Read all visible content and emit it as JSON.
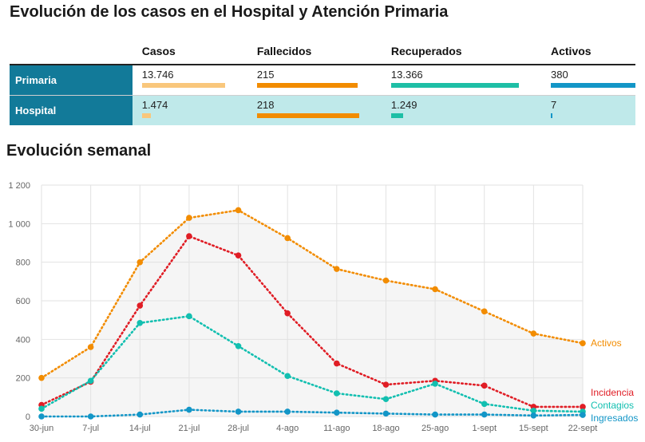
{
  "header": {
    "title": "Evolución de los casos en el Hospital y Atención Primaria"
  },
  "summary_table": {
    "columns": [
      "",
      "Casos",
      "Fallecidos",
      "Recuperados",
      "Activos"
    ],
    "column_colors": [
      "#f9c77c",
      "#f28c00",
      "#1ebfa6",
      "#1396c7"
    ],
    "column_max": [
      13746,
      218,
      13366,
      380
    ],
    "rows": [
      {
        "label": "Primaria",
        "values": [
          "13.746",
          "215",
          "13.366",
          "380"
        ],
        "numbers": [
          13746,
          215,
          13366,
          380
        ]
      },
      {
        "label": "Hospital",
        "values": [
          "1.474",
          "218",
          "1.249",
          "7"
        ],
        "numbers": [
          1474,
          218,
          1249,
          7
        ]
      }
    ]
  },
  "section": {
    "title": "Evolución semanal"
  },
  "chart_data": {
    "type": "line",
    "categories": [
      "30-jun",
      "7-jul",
      "14-jul",
      "21-jul",
      "28-jul",
      "4-ago",
      "11-ago",
      "18-ago",
      "25-ago",
      "1-sept",
      "15-sept",
      "22-sept"
    ],
    "x_positions": [
      0,
      7,
      14,
      21,
      28,
      35,
      42,
      49,
      56,
      63,
      70,
      77
    ],
    "ylim": [
      0,
      1200
    ],
    "yticks": [
      0,
      200,
      400,
      600,
      800,
      1000,
      1200
    ],
    "ytick_labels": [
      "0",
      "200",
      "400",
      "600",
      "800",
      "1 000",
      "1 200"
    ],
    "grid": true,
    "series": [
      {
        "name": "Activos",
        "color": "#f28c00",
        "values": [
          200,
          360,
          800,
          1030,
          1070,
          925,
          765,
          705,
          660,
          545,
          430,
          380
        ]
      },
      {
        "name": "Incidencia",
        "color": "#e01d25",
        "values": [
          60,
          180,
          575,
          935,
          835,
          535,
          275,
          165,
          185,
          160,
          50,
          50
        ]
      },
      {
        "name": "Contagios",
        "color": "#12bfb0",
        "values": [
          40,
          185,
          485,
          520,
          365,
          210,
          120,
          90,
          170,
          65,
          30,
          25
        ]
      },
      {
        "name": "Ingresados",
        "color": "#1396c7",
        "values": [
          0,
          0,
          10,
          35,
          25,
          25,
          20,
          15,
          10,
          10,
          5,
          8
        ]
      }
    ]
  }
}
